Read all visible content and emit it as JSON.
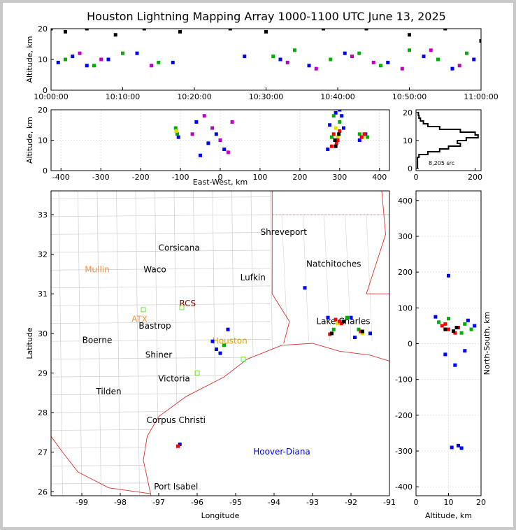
{
  "title": "Houston Lightning Mapping Array 1000-1100 UTC June 13, 2025",
  "chart_data": [
    {
      "type": "scatter",
      "ylabel": "Altitude, km",
      "xlim": [
        0,
        60
      ],
      "ylim": [
        0,
        20
      ],
      "xticks": [
        {
          "value": 0,
          "label": "10:00:00"
        },
        {
          "value": 10,
          "label": "10:10:00"
        },
        {
          "value": 20,
          "label": "10:20:00"
        },
        {
          "value": 30,
          "label": "10:30:00"
        },
        {
          "value": 40,
          "label": "10:40:00"
        },
        {
          "value": 50,
          "label": "10:50:00"
        },
        {
          "value": 60,
          "label": "11:00:00"
        }
      ],
      "yticks": [
        0,
        10,
        20
      ],
      "grid": false,
      "series": [
        {
          "color": "#0000ff",
          "x": [
            1,
            3,
            5,
            8,
            12,
            17,
            27,
            32,
            36,
            41,
            47,
            52,
            56,
            59
          ],
          "y": [
            9,
            11,
            8,
            10,
            12,
            9,
            11,
            10,
            8,
            12,
            9,
            11,
            7,
            10
          ]
        },
        {
          "color": "#00b000",
          "x": [
            2,
            6,
            10,
            15,
            31,
            34,
            39,
            43,
            46,
            50,
            54,
            58
          ],
          "y": [
            10,
            8,
            12,
            9,
            11,
            13,
            10,
            12,
            8,
            13,
            10,
            12
          ]
        },
        {
          "color": "#c000c0",
          "x": [
            4,
            7,
            14,
            33,
            37,
            42,
            45,
            49,
            53,
            57
          ],
          "y": [
            12,
            10,
            8,
            9,
            7,
            11,
            9,
            7,
            13,
            8
          ]
        },
        {
          "color": "#000000",
          "x": [
            0,
            2,
            5,
            9,
            13,
            18,
            25,
            30,
            38,
            44,
            50,
            55,
            60
          ],
          "y": [
            20,
            19,
            20,
            18,
            20,
            19,
            20,
            19,
            20,
            20,
            18,
            20,
            16
          ]
        }
      ]
    },
    {
      "type": "scatter",
      "xlabel": "East-West, km",
      "ylabel": "Altitude, km",
      "xlim": [
        -425,
        425
      ],
      "ylim": [
        0,
        20
      ],
      "xticks": [
        -400,
        -300,
        -200,
        -100,
        0,
        100,
        200,
        300,
        400
      ],
      "yticks": [
        0,
        10,
        20
      ],
      "grid": true,
      "series": [
        {
          "color": "#0000ff",
          "x": [
            -110,
            -105,
            -60,
            -30,
            -10,
            10,
            -50,
            270,
            275,
            305,
            310,
            350,
            365,
            300,
            290
          ],
          "y": [
            13,
            11,
            16,
            9,
            12,
            7,
            5,
            7,
            15,
            18,
            14,
            10,
            12,
            20,
            19
          ]
        },
        {
          "color": "#c000c0",
          "x": [
            -40,
            -20,
            0,
            20,
            -70,
            30
          ],
          "y": [
            18,
            14,
            10,
            6,
            12,
            16
          ]
        },
        {
          "color": "#00b000",
          "x": [
            -112,
            -108,
            280,
            300,
            285,
            350,
            370
          ],
          "y": [
            14,
            12,
            11,
            16,
            18,
            12,
            11
          ]
        },
        {
          "color": "#e0e000",
          "x": [
            -110,
            290,
            295,
            358
          ],
          "y": [
            13,
            14,
            11,
            11
          ]
        },
        {
          "color": "#ff0000",
          "x": [
            285,
            292,
            300,
            355,
            362,
            280,
            295
          ],
          "y": [
            12,
            9,
            13,
            11,
            12,
            8,
            10
          ]
        },
        {
          "color": "#000000",
          "x": [
            290,
            298,
            288
          ],
          "y": [
            8,
            12,
            10
          ]
        }
      ]
    },
    {
      "type": "line",
      "note": "8,205 src",
      "xlim": [
        0,
        220
      ],
      "ylim": [
        -0.75,
        21
      ],
      "xticks": [
        0,
        200
      ],
      "yticks": [
        0,
        10,
        20
      ],
      "grid": false,
      "series": [
        {
          "color": "#000000",
          "x": [
            5,
            5,
            10,
            40,
            80,
            110,
            150,
            140,
            170,
            210,
            200,
            150,
            80,
            40,
            25,
            15,
            10,
            8,
            5
          ],
          "y": [
            0,
            2,
            4,
            5,
            6,
            7,
            8,
            9,
            10,
            11,
            12,
            13,
            14,
            15,
            16,
            17,
            18,
            19,
            20
          ]
        }
      ]
    },
    {
      "type": "map",
      "xlabel": "Longitude",
      "ylabel": "Latitude",
      "xlim": [
        -99.8,
        -91
      ],
      "ylim": [
        25.9,
        33.6
      ],
      "xticks": [
        -99,
        -98,
        -97,
        -96,
        -95,
        -94,
        -93,
        -92,
        -91
      ],
      "yticks": [
        26,
        27,
        28,
        29,
        30,
        31,
        32,
        33
      ],
      "grid": false,
      "annotations": [
        {
          "text": "Shreveport",
          "x": -93.75,
          "y": 32.55,
          "color": "#000000"
        },
        {
          "text": "Corsicana",
          "x": -96.47,
          "y": 32.15,
          "color": "#000000"
        },
        {
          "text": "Mullin",
          "x": -98.6,
          "y": 31.6,
          "color": "#ff8c40"
        },
        {
          "text": "Waco",
          "x": -97.1,
          "y": 31.6,
          "color": "#000000"
        },
        {
          "text": "Natchitoches",
          "x": -92.45,
          "y": 31.75,
          "color": "#000000"
        },
        {
          "text": "Lufkin",
          "x": -94.55,
          "y": 31.4,
          "color": "#000000"
        },
        {
          "text": "RCS",
          "x": -96.25,
          "y": 30.75,
          "color": "#8b0000"
        },
        {
          "text": "ATX",
          "x": -97.5,
          "y": 30.35,
          "color": "#ff8c40"
        },
        {
          "text": "Bastrop",
          "x": -97.1,
          "y": 30.18,
          "color": "#000000"
        },
        {
          "text": "Lake Charles",
          "x": -92.2,
          "y": 30.3,
          "color": "#000000"
        },
        {
          "text": "Houston",
          "x": -95.15,
          "y": 29.8,
          "color": "#e0a000"
        },
        {
          "text": "Boerne",
          "x": -98.6,
          "y": 29.82,
          "color": "#000000"
        },
        {
          "text": "Shiner",
          "x": -97.0,
          "y": 29.45,
          "color": "#000000"
        },
        {
          "text": "Victoria",
          "x": -96.6,
          "y": 28.85,
          "color": "#000000"
        },
        {
          "text": "Tilden",
          "x": -98.3,
          "y": 28.52,
          "color": "#000000"
        },
        {
          "text": "Corpus Christi",
          "x": -96.55,
          "y": 27.8,
          "color": "#000000"
        },
        {
          "text": "Hoover-Diana",
          "x": -93.8,
          "y": 27.0,
          "color": "#0000e0"
        },
        {
          "text": "Port Isabel",
          "x": -96.55,
          "y": 26.12,
          "color": "#000000"
        }
      ],
      "series": [
        {
          "color": "#0000ff",
          "x": [
            -92.6,
            -91.5,
            -95.5,
            -95.6,
            -95.4,
            -95.2,
            -93.2,
            -96.45,
            -92.0,
            -91.9
          ],
          "y": [
            30.4,
            30.0,
            29.6,
            29.8,
            29.5,
            30.1,
            31.15,
            27.2,
            30.4,
            29.9
          ]
        },
        {
          "color": "#00b000",
          "x": [
            -92.1,
            -91.8,
            -95.3,
            -92.45
          ],
          "y": [
            30.4,
            30.1,
            29.7,
            30.1
          ]
        },
        {
          "color": "#e0e000",
          "x": [
            -92.35,
            -91.7
          ],
          "y": [
            30.25,
            30.0
          ]
        },
        {
          "color": "#ff0000",
          "x": [
            -92.3,
            -92.25,
            -91.75,
            -92.55,
            -96.5,
            -92.4
          ],
          "y": [
            30.3,
            30.25,
            30.05,
            29.98,
            27.15,
            30.35
          ]
        },
        {
          "color": "#000000",
          "x": [
            -92.5,
            -92.2,
            -91.7
          ],
          "y": [
            30.0,
            30.3,
            30.05
          ]
        },
        {
          "color": "#66ee33",
          "marker": "square-open",
          "x": [
            -97.4,
            -96.0,
            -94.8,
            -96.4
          ],
          "y": [
            30.6,
            29.0,
            29.35,
            30.65
          ]
        }
      ]
    },
    {
      "type": "scatter",
      "xlabel": "Altitude, km",
      "ylabel": "North-South, km",
      "xlim": [
        0,
        20
      ],
      "ylim": [
        -425,
        427
      ],
      "xticks": [
        0,
        10,
        20
      ],
      "yticks": [
        -400,
        -300,
        -200,
        -100,
        0,
        100,
        200,
        300,
        400
      ],
      "grid": true,
      "series": [
        {
          "color": "#0000ff",
          "x": [
            6,
            16,
            18,
            11,
            13,
            14,
            10,
            9,
            12,
            15
          ],
          "y": [
            75,
            65,
            50,
            -290,
            -285,
            -292,
            190,
            -30,
            -60,
            -20
          ]
        },
        {
          "color": "#00b000",
          "x": [
            7,
            15,
            17,
            10,
            14
          ],
          "y": [
            60,
            55,
            40,
            70,
            30
          ]
        },
        {
          "color": "#ff0000",
          "x": [
            8,
            10,
            12,
            13,
            9
          ],
          "y": [
            50,
            40,
            30,
            45,
            55
          ]
        },
        {
          "color": "#000000",
          "x": [
            9,
            11.5,
            12.5
          ],
          "y": [
            40,
            35,
            45
          ]
        }
      ]
    }
  ]
}
